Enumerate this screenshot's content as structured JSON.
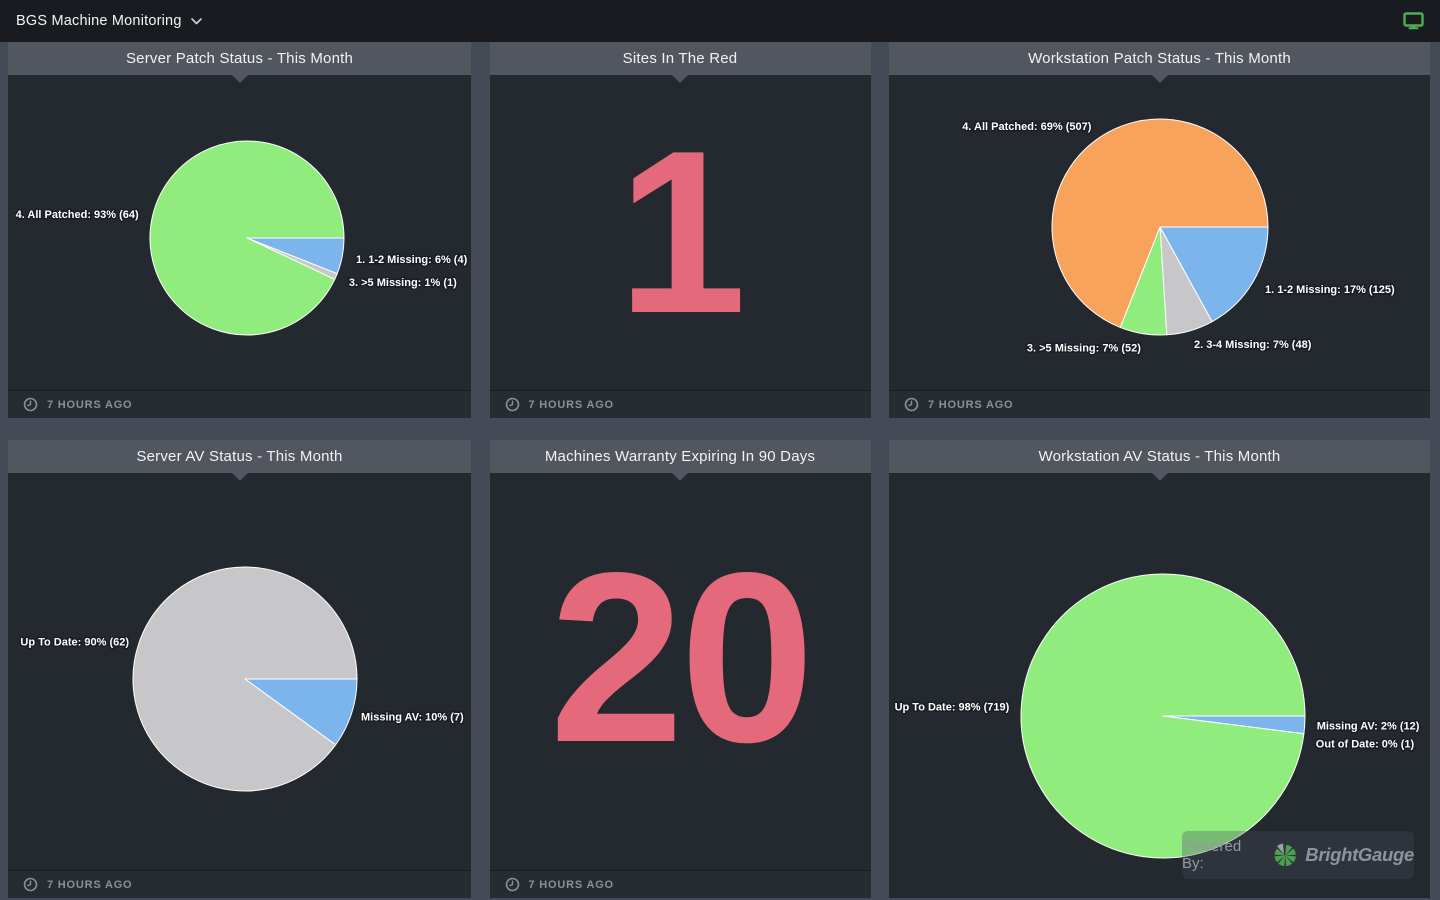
{
  "topbar": {
    "title": "BGS Machine Monitoring"
  },
  "footer_text": "7 HOURS AGO",
  "powered_by": {
    "prefix": "Powered By:",
    "brand": "BrightGauge"
  },
  "colors": {
    "pie_blue": "#7cb5ec",
    "pie_green": "#90ed7d",
    "pie_gray": "#c7c7c9",
    "pie_orange": "#f7a35c",
    "big_number": "#e3697b",
    "icon_green": "#4cb050",
    "logo_green": "#4aa24f",
    "logo_gray": "#9ba1a8"
  },
  "chart_data": [
    {
      "id": "server-patch-status",
      "type": "pie",
      "title": "Server Patch Status - This Month",
      "legend_position": "none",
      "slices": [
        {
          "name": "1. 1-2 Missing",
          "pct": 6,
          "count": 4,
          "color": "#7cb5ec",
          "label": "1. 1-2 Missing: 6% (4)"
        },
        {
          "name": "3. >5 Missing",
          "pct": 1,
          "count": 1,
          "color": "#c7c7c9",
          "label": "3. >5 Missing: 1% (1)"
        },
        {
          "name": "4. All Patched",
          "pct": 93,
          "count": 64,
          "color": "#90ed7d",
          "label": "4. All Patched: 93% (64)"
        }
      ]
    },
    {
      "id": "sites-in-the-red",
      "type": "number",
      "title": "Sites In The Red",
      "value": "1"
    },
    {
      "id": "workstation-patch-status",
      "type": "pie",
      "title": "Workstation Patch Status - This Month",
      "legend_position": "none",
      "slices": [
        {
          "name": "1. 1-2 Missing",
          "pct": 17,
          "count": 125,
          "color": "#7cb5ec",
          "label": "1. 1-2 Missing: 17% (125)"
        },
        {
          "name": "2. 3-4 Missing",
          "pct": 7,
          "count": 48,
          "color": "#c7c7c9",
          "label": "2. 3-4 Missing: 7% (48)"
        },
        {
          "name": "3. >5 Missing",
          "pct": 7,
          "count": 52,
          "color": "#90ed7d",
          "label": "3. >5 Missing: 7% (52)"
        },
        {
          "name": "4. All Patched",
          "pct": 69,
          "count": 507,
          "color": "#f7a35c",
          "label": "4. All Patched: 69% (507)"
        }
      ]
    },
    {
      "id": "server-av-status",
      "type": "pie",
      "title": "Server AV Status - This Month",
      "legend_position": "none",
      "slices": [
        {
          "name": "Missing AV",
          "pct": 10,
          "count": 7,
          "color": "#7cb5ec",
          "label": "Missing AV: 10% (7)"
        },
        {
          "name": "Up To Date",
          "pct": 90,
          "count": 62,
          "color": "#c7c7c9",
          "label": "Up To Date: 90% (62)"
        }
      ]
    },
    {
      "id": "machines-warranty-expiring",
      "type": "number",
      "title": "Machines Warranty Expiring In 90 Days",
      "value": "20"
    },
    {
      "id": "workstation-av-status",
      "type": "pie",
      "title": "Workstation AV Status - This Month",
      "legend_position": "none",
      "slices": [
        {
          "name": "Missing AV",
          "pct": 2,
          "count": 12,
          "color": "#7cb5ec",
          "label": "Missing AV: 2% (12)"
        },
        {
          "name": "Out of Date",
          "pct": 0,
          "count": 1,
          "color": "#c7c7c9",
          "label": "Out of Date: 0% (1)"
        },
        {
          "name": "Up To Date",
          "pct": 98,
          "count": 719,
          "color": "#90ed7d",
          "label": "Up To Date: 98% (719)"
        }
      ]
    }
  ]
}
